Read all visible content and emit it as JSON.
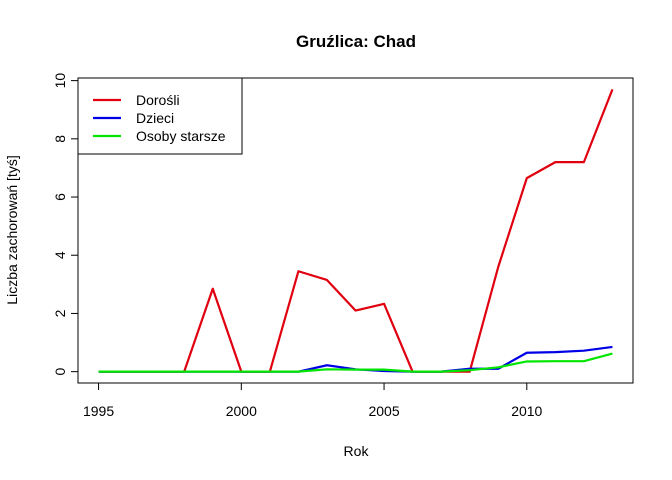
{
  "chart_data": {
    "type": "line",
    "title": "Gruźlica: Chad",
    "xlabel": "Rok",
    "ylabel": "Liczba zachorowań [tyś]",
    "x": [
      1995,
      1996,
      1997,
      1998,
      1999,
      2000,
      2001,
      2002,
      2003,
      2004,
      2005,
      2006,
      2007,
      2008,
      2009,
      2010,
      2011,
      2012,
      2013
    ],
    "xticks": [
      1995,
      2000,
      2005,
      2010
    ],
    "yticks": [
      0,
      2,
      4,
      6,
      8,
      10
    ],
    "xlim": [
      1994.28,
      2013.72
    ],
    "ylim": [
      -0.39,
      10.09
    ],
    "legend_position": "top-left",
    "grid": false,
    "series": [
      {
        "name": "Dorośli",
        "color": "#e0000f",
        "values": [
          0,
          0,
          0,
          0,
          2.85,
          0,
          0,
          3.45,
          3.15,
          2.1,
          2.33,
          0,
          0,
          0,
          3.6,
          6.65,
          7.2,
          7.2,
          9.7
        ]
      },
      {
        "name": "Dzieci",
        "color": "#0000e6",
        "values": [
          0,
          0,
          0,
          0,
          0,
          0,
          0,
          0,
          0.22,
          0.08,
          0.02,
          0,
          0,
          0.1,
          0.1,
          0.65,
          0.67,
          0.72,
          0.85
        ]
      },
      {
        "name": "Osoby starsze",
        "color": "#00e600",
        "values": [
          0,
          0,
          0,
          0,
          0,
          0,
          0,
          0,
          0.08,
          0.07,
          0.07,
          0,
          0,
          0.05,
          0.15,
          0.35,
          0.36,
          0.36,
          0.62
        ]
      }
    ]
  }
}
